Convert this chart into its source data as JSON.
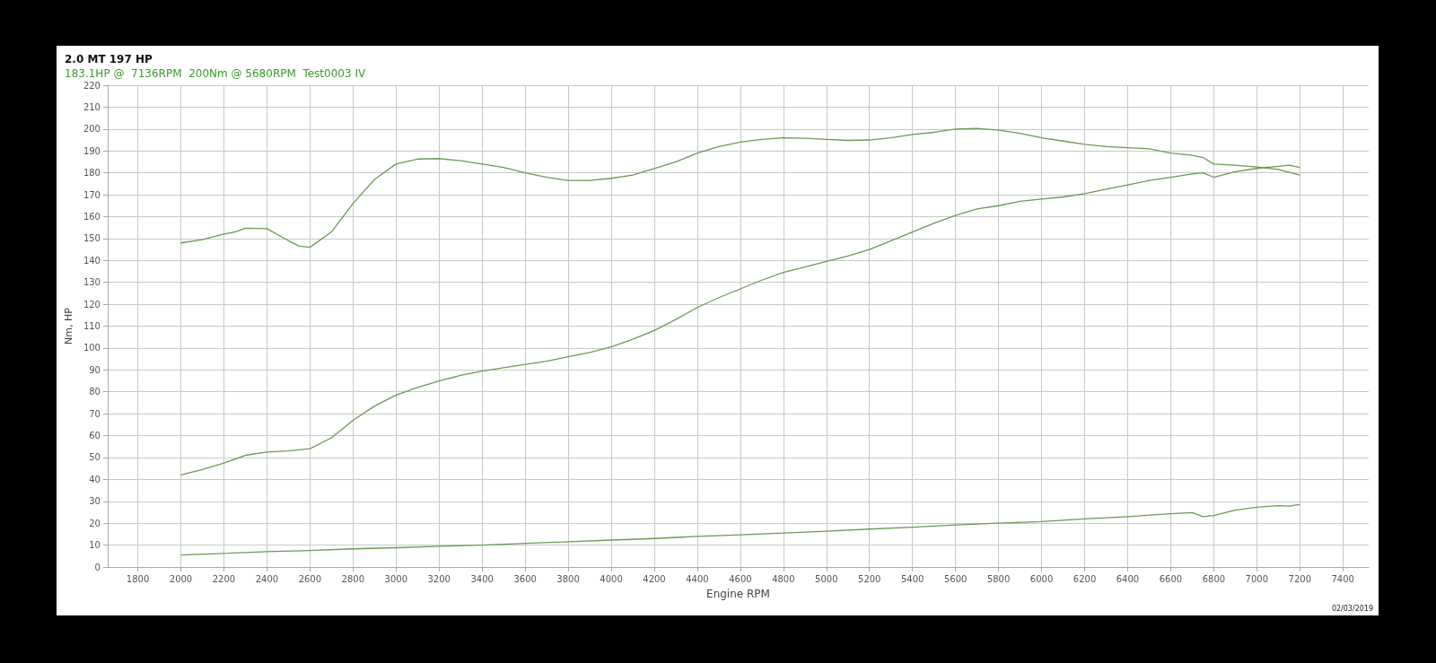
{
  "chart_data": {
    "type": "line",
    "title": "2.0 MT 197 HP",
    "subtitle": "183.1HP @  7136RPM  200Nm @ 5680RPM  Test0003 IV",
    "xlabel": "Engine RPM",
    "ylabel": "Nm, HP",
    "annotations": [
      "02/03/2019"
    ],
    "xlim": [
      1660,
      7520
    ],
    "xticks": [
      1800,
      2000,
      2200,
      2400,
      2600,
      2800,
      3000,
      3200,
      3400,
      3600,
      3800,
      4000,
      4200,
      4400,
      4600,
      4800,
      5000,
      5200,
      5400,
      5600,
      5800,
      6000,
      6200,
      6400,
      6600,
      6800,
      7000,
      7200,
      7400
    ],
    "ylim": [
      0,
      220
    ],
    "yticks": [
      0,
      10,
      20,
      30,
      40,
      50,
      60,
      70,
      80,
      90,
      100,
      110,
      120,
      130,
      140,
      150,
      160,
      170,
      180,
      190,
      200,
      210,
      220
    ],
    "grid": true,
    "marker": "none",
    "line_style": "solid",
    "series": [
      {
        "color": "#6a9a55",
        "x": [
          2000,
          2100,
          2200,
          2250,
          2300,
          2400,
          2500,
          2550,
          2600,
          2700,
          2800,
          2900,
          3000,
          3100,
          3200,
          3300,
          3400,
          3500,
          3600,
          3700,
          3800,
          3900,
          4000,
          4100,
          4200,
          4300,
          4400,
          4500,
          4600,
          4700,
          4800,
          4900,
          5000,
          5100,
          5200,
          5300,
          5400,
          5500,
          5600,
          5700,
          5800,
          5900,
          6000,
          6100,
          6200,
          6300,
          6400,
          6500,
          6600,
          6700,
          6750,
          6800,
          6900,
          7000,
          7100,
          7200
        ],
        "values": [
          148,
          149.5,
          152,
          153,
          154.7,
          154.5,
          149,
          146.5,
          146,
          153,
          166,
          177,
          184,
          186.3,
          186.5,
          185.5,
          184,
          182.5,
          180,
          178,
          176.5,
          176.5,
          177.5,
          179,
          182,
          185,
          189,
          192,
          194,
          195.3,
          196,
          195.8,
          195.3,
          194.8,
          195,
          196,
          197.5,
          198.5,
          200,
          200.3,
          199.5,
          198,
          196,
          194.5,
          193,
          192,
          191.5,
          191,
          189,
          188,
          187,
          184,
          183.5,
          182.7,
          181.5,
          179
        ]
      },
      {
        "color": "#6a9a55",
        "x": [
          2000,
          2100,
          2200,
          2300,
          2400,
          2500,
          2600,
          2700,
          2800,
          2900,
          3000,
          3100,
          3200,
          3300,
          3400,
          3500,
          3600,
          3700,
          3800,
          3900,
          4000,
          4100,
          4200,
          4300,
          4400,
          4500,
          4600,
          4700,
          4800,
          4900,
          5000,
          5100,
          5200,
          5300,
          5400,
          5500,
          5600,
          5700,
          5800,
          5900,
          6000,
          6100,
          6200,
          6300,
          6400,
          6500,
          6600,
          6700,
          6750,
          6800,
          6900,
          7000,
          7100,
          7150,
          7200
        ],
        "values": [
          42,
          44.5,
          47.5,
          51,
          52.5,
          53,
          54,
          59,
          67,
          73.5,
          78.5,
          82,
          85,
          87.5,
          89.5,
          91,
          92.5,
          94,
          96,
          98,
          100.5,
          104,
          108,
          113,
          118.5,
          123,
          127,
          131,
          134.5,
          137,
          139.5,
          142,
          145,
          149,
          153,
          157,
          160.5,
          163.5,
          165,
          167,
          168,
          169,
          170.5,
          172.5,
          174.5,
          176.5,
          178,
          179.5,
          180,
          178,
          180.5,
          182,
          183,
          183.5,
          182.5
        ]
      },
      {
        "color": "#6a9a55",
        "x": [
          2000,
          2200,
          2400,
          2600,
          2800,
          3000,
          3200,
          3400,
          3600,
          3800,
          4000,
          4200,
          4400,
          4600,
          4800,
          5000,
          5200,
          5400,
          5600,
          5800,
          6000,
          6200,
          6400,
          6600,
          6700,
          6750,
          6800,
          6900,
          7000,
          7100,
          7150,
          7200
        ],
        "values": [
          5.5,
          6.2,
          7,
          7.5,
          8.3,
          8.8,
          9.5,
          10,
          10.8,
          11.5,
          12.3,
          13,
          14,
          14.7,
          15.5,
          16.3,
          17.3,
          18.2,
          19.2,
          20,
          20.7,
          22,
          23,
          24.3,
          24.8,
          23,
          23.5,
          26,
          27.3,
          28,
          27.8,
          28.5
        ]
      }
    ]
  }
}
